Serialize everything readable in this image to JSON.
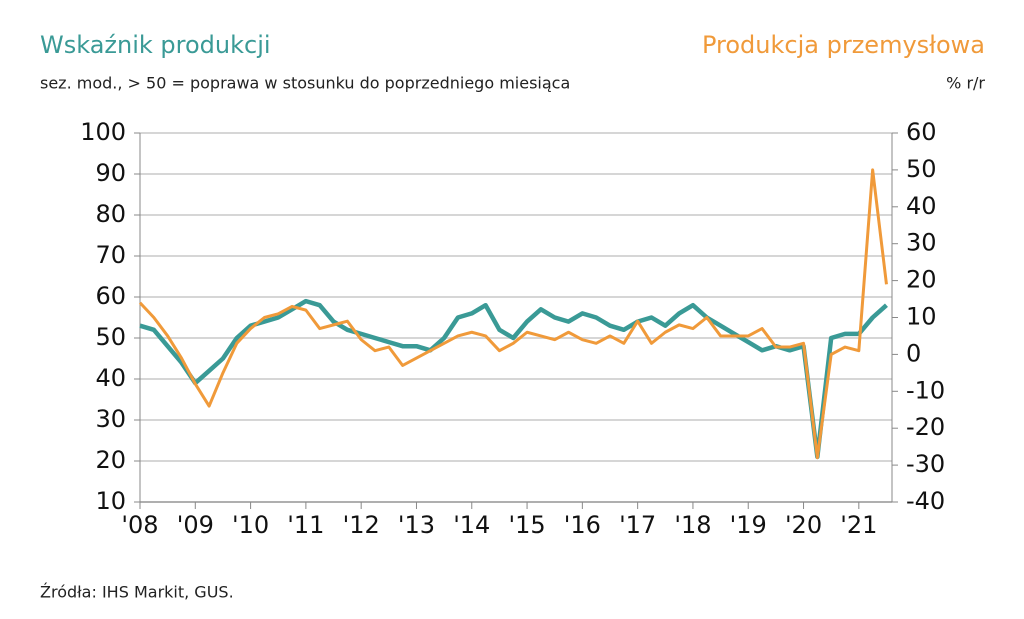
{
  "chart_data": {
    "type": "line",
    "title": "Wskaźnik produkcji",
    "title_right": "Produkcja przemysłowa",
    "subtitle": "sez. mod., > 50 = poprawa w stosunku do poprzedniego miesiąca",
    "y2_label": "% r/r",
    "source": "Źródła: IHS Markit, GUS.",
    "x": [
      2008.0,
      2008.25,
      2008.5,
      2008.75,
      2009.0,
      2009.25,
      2009.5,
      2009.75,
      2010.0,
      2010.25,
      2010.5,
      2010.75,
      2011.0,
      2011.25,
      2011.5,
      2011.75,
      2012.0,
      2012.25,
      2012.5,
      2012.75,
      2013.0,
      2013.25,
      2013.5,
      2013.75,
      2014.0,
      2014.25,
      2014.5,
      2014.75,
      2015.0,
      2015.25,
      2015.5,
      2015.75,
      2016.0,
      2016.25,
      2016.5,
      2016.75,
      2017.0,
      2017.25,
      2017.5,
      2017.75,
      2018.0,
      2018.25,
      2018.5,
      2018.75,
      2019.0,
      2019.25,
      2019.5,
      2019.75,
      2020.0,
      2020.25,
      2020.5,
      2020.75,
      2021.0,
      2021.25,
      2021.5
    ],
    "series": [
      {
        "name": "Wskaźnik produkcji",
        "color": "#3a9a96",
        "values": [
          53,
          52,
          48,
          44,
          39,
          42,
          45,
          50,
          53,
          54,
          55,
          57,
          59,
          58,
          54,
          52,
          51,
          50,
          49,
          48,
          48,
          47,
          50,
          55,
          56,
          58,
          52,
          50,
          54,
          57,
          55,
          54,
          56,
          55,
          53,
          52,
          54,
          55,
          53,
          56,
          58,
          55,
          53,
          51,
          49,
          47,
          48,
          47,
          48,
          21,
          50,
          51,
          51,
          55,
          58
        ]
      },
      {
        "name": "Produkcja przemysłowa",
        "color": "#f09a3a",
        "axis": "y2",
        "values": [
          14,
          10,
          5,
          -1,
          -8,
          -14,
          -5,
          3,
          7,
          10,
          11,
          13,
          12,
          7,
          8,
          9,
          4,
          1,
          2,
          -3,
          -1,
          1,
          3,
          5,
          6,
          5,
          1,
          3,
          6,
          5,
          4,
          6,
          4,
          3,
          5,
          3,
          9,
          3,
          6,
          8,
          7,
          10,
          5,
          5,
          5,
          7,
          2,
          2,
          3,
          -28,
          0,
          2,
          1,
          50,
          19
        ]
      }
    ],
    "xlim": [
      2008,
      2021.6
    ],
    "xticks": [
      {
        "value": 2008,
        "label": "'08"
      },
      {
        "value": 2009,
        "label": "'09"
      },
      {
        "value": 2010,
        "label": "'10"
      },
      {
        "value": 2011,
        "label": "'11"
      },
      {
        "value": 2012,
        "label": "'12"
      },
      {
        "value": 2013,
        "label": "'13"
      },
      {
        "value": 2014,
        "label": "'14"
      },
      {
        "value": 2015,
        "label": "'15"
      },
      {
        "value": 2016,
        "label": "'16"
      },
      {
        "value": 2017,
        "label": "'17"
      },
      {
        "value": 2018,
        "label": "'18"
      },
      {
        "value": 2019,
        "label": "'19"
      },
      {
        "value": 2020,
        "label": "'20"
      },
      {
        "value": 2021,
        "label": "'21"
      }
    ],
    "ylim": [
      10,
      100
    ],
    "yticks": [
      10,
      20,
      30,
      40,
      50,
      60,
      70,
      80,
      90,
      100
    ],
    "y2lim": [
      -40,
      60
    ],
    "y2ticks": [
      -40,
      -30,
      -20,
      -10,
      0,
      10,
      20,
      30,
      40,
      50,
      60
    ],
    "grid": true
  }
}
